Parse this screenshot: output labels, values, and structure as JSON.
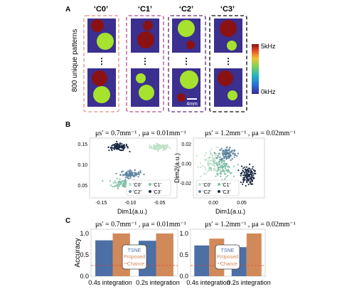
{
  "panels": {
    "a": {
      "letter": "A",
      "class_labels": [
        "‘C0’",
        "‘C1’",
        "‘C2’",
        "‘C3’"
      ],
      "row_label": "800 unique patterns",
      "ellipsis": "⋮",
      "scale_bar_label": "4mm",
      "colorbar": {
        "max_label": "5kHz",
        "min_label": "0kHz",
        "colors": [
          "#3b2a88",
          "#2b6fd6",
          "#20b3c4",
          "#7cd35a",
          "#f2c12e",
          "#e0452a",
          "#8b0f12"
        ]
      },
      "colors": {
        "background": "#3b2f8f",
        "high": "#8b1212",
        "low": "#a6e22e",
        "frame_c0": "#e5a49a",
        "frame_c1": "#c06aa0",
        "frame_c2": "#7a4d8c",
        "frame_c3": "#333333"
      }
    },
    "b": {
      "letter": "B",
      "left_title": "μs′ = 0.7mm⁻¹ , μa = 0.01mm⁻¹",
      "right_title": "μs′ = 1.2mm⁻¹ , μa = 0.02mm⁻¹"
    },
    "c": {
      "letter": "C",
      "left_title": "μs′ = 0.7mm⁻¹ , μa = 0.01mm⁻¹",
      "right_title": "μs′ = 1.2mm⁻¹ , μa = 0.02mm⁻¹",
      "ylabel": "Accuracy",
      "legend": [
        "TSNE",
        "Proposed",
        "Chance"
      ],
      "xticks": [
        "0.4s integration",
        "0.2s integration"
      ]
    }
  },
  "chart_data": [
    {
      "type": "scatter",
      "panel": "B-left",
      "xlabel": "Dim1(a.u.)",
      "ylabel": "",
      "xlim": [
        -0.17,
        -0.02
      ],
      "ylim": [
        0.02,
        0.165
      ],
      "xticks": [
        "-0.15",
        "-0.10",
        "-0.05"
      ],
      "yticks": [
        "0.15",
        "0.10",
        "0.05"
      ],
      "legend": [
        "‘C0’",
        "‘C1’",
        "‘C2’",
        "‘C3’"
      ],
      "series": [
        {
          "name": "‘C0’",
          "color": "#bfe0c9",
          "center": [
            -0.05,
            0.143
          ],
          "spread": [
            0.014,
            0.006
          ],
          "count": 90
        },
        {
          "name": "‘C1’",
          "color": "#7fbfa6",
          "center": [
            -0.11,
            0.055
          ],
          "spread": [
            0.018,
            0.009
          ],
          "count": 110
        },
        {
          "name": "‘C2’",
          "color": "#5f86a0",
          "center": [
            -0.1,
            0.078
          ],
          "spread": [
            0.014,
            0.007
          ],
          "count": 90
        },
        {
          "name": "‘C3’",
          "color": "#1e2a44",
          "center": [
            -0.12,
            0.143
          ],
          "spread": [
            0.014,
            0.007
          ],
          "count": 110
        }
      ]
    },
    {
      "type": "scatter",
      "panel": "B-right",
      "xlabel": "Dim1(a.u.)",
      "ylabel": "Dim2(a.u.)",
      "xlim": [
        -0.035,
        0.09
      ],
      "ylim": [
        -0.035,
        0.026
      ],
      "xticks": [
        "0.00",
        "0.05"
      ],
      "yticks": [
        "0.02",
        "0.00",
        "-0.02"
      ],
      "legend": [
        "‘C0’",
        "‘C1’",
        "‘C2’",
        "‘C3’"
      ],
      "series": [
        {
          "name": "‘C0’",
          "color": "#bfe0c9",
          "center": [
            0.002,
            0.002
          ],
          "spread": [
            0.018,
            0.01
          ],
          "count": 110
        },
        {
          "name": "‘C1’",
          "color": "#7fbfa6",
          "center": [
            0.015,
            -0.005
          ],
          "spread": [
            0.015,
            0.008
          ],
          "count": 90
        },
        {
          "name": "‘C2’",
          "color": "#5f86a0",
          "center": [
            0.025,
            0.01
          ],
          "spread": [
            0.013,
            0.006
          ],
          "count": 110
        },
        {
          "name": "‘C3’",
          "color": "#1e2a44",
          "center": [
            0.06,
            -0.012
          ],
          "spread": [
            0.01,
            0.008
          ],
          "count": 120
        }
      ]
    },
    {
      "type": "bar",
      "panel": "C-left",
      "categories": [
        "0.4s integration",
        "0.2s integration"
      ],
      "ylabel": "Accuracy",
      "ylim": [
        0,
        1.1
      ],
      "yticks": [
        "1.0",
        "0.5",
        "0.0"
      ],
      "chance": 0.25,
      "series": [
        {
          "name": "TSNE",
          "color": "#4c6fa5",
          "values": [
            0.84,
            0.83
          ]
        },
        {
          "name": "Proposed",
          "color": "#d2895a",
          "values": [
            1.0,
            1.0
          ]
        }
      ]
    },
    {
      "type": "bar",
      "panel": "C-right",
      "categories": [
        "0.4s integration",
        "0.2s integration"
      ],
      "ylabel": "",
      "ylim": [
        0,
        1.1
      ],
      "yticks": [
        "1.0",
        "0.5",
        "0.0"
      ],
      "chance": 0.25,
      "series": [
        {
          "name": "TSNE",
          "color": "#4c6fa5",
          "values": [
            0.72,
            0.68
          ]
        },
        {
          "name": "Proposed",
          "color": "#d2895a",
          "values": [
            0.88,
            1.0
          ]
        }
      ]
    }
  ]
}
